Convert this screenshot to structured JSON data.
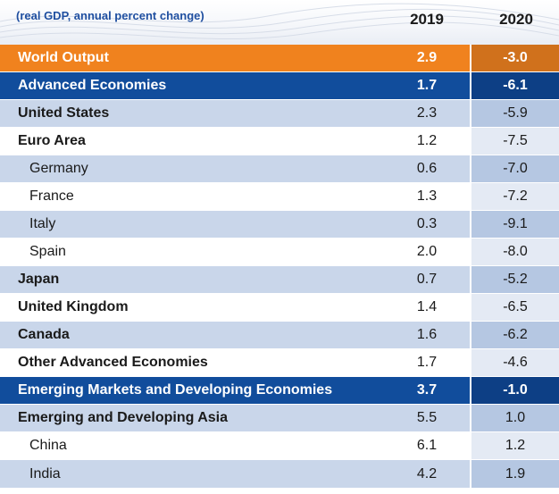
{
  "header": {
    "subtitle": "(real GDP, annual percent change)",
    "col_2019": "2019",
    "col_2020": "2020"
  },
  "colors": {
    "world_row": "#f0821e",
    "group_row": "#114d9c",
    "shaded_row": "#c9d6ea",
    "subtitle_text": "#1f4fa0"
  },
  "rows": [
    {
      "label": "World Output",
      "v2019": "2.9",
      "v2020": "-3.0"
    },
    {
      "label": "Advanced Economies",
      "v2019": "1.7",
      "v2020": "-6.1"
    },
    {
      "label": "United States",
      "v2019": "2.3",
      "v2020": "-5.9"
    },
    {
      "label": "Euro Area",
      "v2019": "1.2",
      "v2020": "-7.5"
    },
    {
      "label": "Germany",
      "v2019": "0.6",
      "v2020": "-7.0"
    },
    {
      "label": "France",
      "v2019": "1.3",
      "v2020": "-7.2"
    },
    {
      "label": "Italy",
      "v2019": "0.3",
      "v2020": "-9.1"
    },
    {
      "label": "Spain",
      "v2019": "2.0",
      "v2020": "-8.0"
    },
    {
      "label": "Japan",
      "v2019": "0.7",
      "v2020": "-5.2"
    },
    {
      "label": "United Kingdom",
      "v2019": "1.4",
      "v2020": "-6.5"
    },
    {
      "label": "Canada",
      "v2019": "1.6",
      "v2020": "-6.2"
    },
    {
      "label": "Other Advanced Economies",
      "v2019": "1.7",
      "v2020": "-4.6"
    },
    {
      "label": "Emerging Markets and Developing Economies",
      "v2019": "3.7",
      "v2020": "-1.0"
    },
    {
      "label": "Emerging and Developing Asia",
      "v2019": "5.5",
      "v2020": "1.0"
    },
    {
      "label": "China",
      "v2019": "6.1",
      "v2020": "1.2"
    },
    {
      "label": "India",
      "v2019": "4.2",
      "v2020": "1.9"
    }
  ]
}
